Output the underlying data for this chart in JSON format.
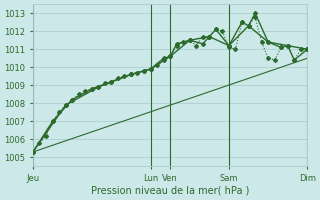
{
  "background_color": "#cce8e8",
  "grid_color": "#aacccc",
  "line_color": "#2d6a2d",
  "ylim": [
    1004.5,
    1013.5
  ],
  "yticks": [
    1005,
    1006,
    1007,
    1008,
    1009,
    1010,
    1011,
    1012,
    1013
  ],
  "xlabel": "Pression niveau de la mer( hPa )",
  "xtick_positions": [
    0,
    18,
    21,
    30,
    42
  ],
  "xtick_labels": [
    "Jeu",
    "Lun",
    "Ven",
    "Sam",
    "Dim"
  ],
  "vlines": [
    0,
    18,
    21,
    30,
    42
  ],
  "series": [
    {
      "x": [
        0,
        1,
        2,
        3,
        4,
        5,
        6,
        7,
        8,
        9,
        10,
        11,
        12,
        13,
        14,
        15,
        16,
        17,
        18,
        19,
        20,
        21,
        22,
        23,
        24,
        25,
        26,
        27,
        28,
        29,
        30,
        31,
        32,
        33,
        34,
        35,
        36,
        37,
        38,
        39,
        40,
        41,
        42
      ],
      "y": [
        1005.3,
        1005.8,
        1006.2,
        1007.0,
        1007.5,
        1007.9,
        1008.2,
        1008.5,
        1008.7,
        1008.8,
        1008.9,
        1009.1,
        1009.2,
        1009.4,
        1009.5,
        1009.6,
        1009.7,
        1009.8,
        1009.9,
        1010.1,
        1010.4,
        1010.6,
        1011.2,
        1011.4,
        1011.5,
        1011.2,
        1011.7,
        1011.7,
        1012.1,
        1012.0,
        1011.1,
        1011.0,
        1012.5,
        1012.3,
        1012.8,
        1011.4,
        1010.5,
        1010.4,
        1011.1,
        1011.2,
        1010.4,
        1011.0,
        1011.0
      ],
      "style": "dotted",
      "marker": "D",
      "markersize": 2.0,
      "lw": 0.8
    },
    {
      "x": [
        0,
        3,
        6,
        9,
        12,
        15,
        17,
        18,
        20,
        21,
        22,
        24,
        26,
        27,
        28,
        30,
        32,
        33,
        34,
        36,
        38,
        39,
        40,
        42
      ],
      "y": [
        1005.3,
        1007.0,
        1008.2,
        1008.8,
        1009.2,
        1009.6,
        1009.8,
        1009.9,
        1010.5,
        1010.6,
        1011.3,
        1011.5,
        1011.3,
        1011.7,
        1012.1,
        1011.2,
        1012.5,
        1012.3,
        1013.0,
        1011.4,
        1011.1,
        1011.2,
        1010.4,
        1011.0
      ],
      "style": "solid",
      "marker": "D",
      "markersize": 2.0,
      "lw": 1.0
    },
    {
      "x": [
        0,
        5,
        10,
        15,
        18,
        21,
        24,
        27,
        30,
        33,
        36,
        39,
        42
      ],
      "y": [
        1005.3,
        1007.9,
        1008.9,
        1009.6,
        1009.9,
        1010.6,
        1011.5,
        1011.7,
        1011.2,
        1012.3,
        1011.4,
        1011.2,
        1011.0
      ],
      "style": "solid",
      "marker": "D",
      "markersize": 2.0,
      "lw": 1.0
    },
    {
      "x": [
        0,
        42
      ],
      "y": [
        1005.3,
        1010.5
      ],
      "style": "solid",
      "marker": null,
      "markersize": 0,
      "lw": 0.8
    }
  ],
  "tick_fontsize": 6,
  "axis_fontsize": 7
}
